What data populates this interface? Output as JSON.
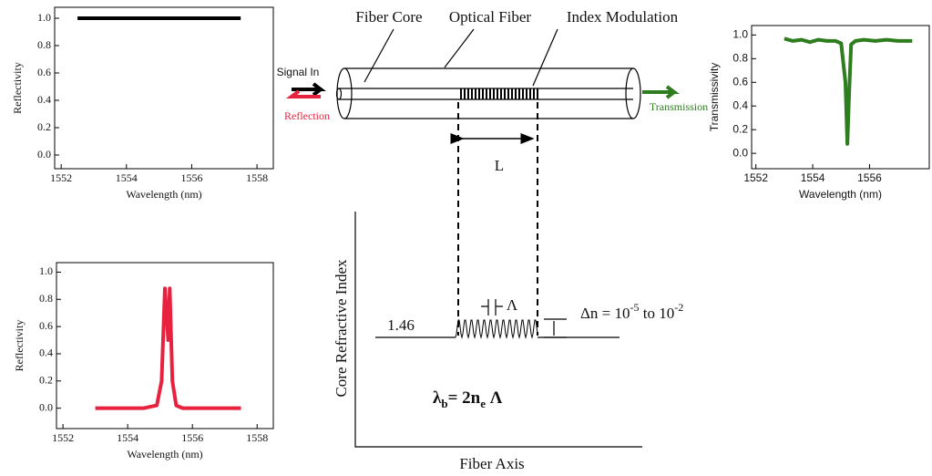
{
  "plots": [
    {
      "type": "line",
      "y_label": "Reflectivity",
      "x_label": "Wavelength (nm)",
      "xlim": [
        1551.8,
        1558.5
      ],
      "xticks": [
        1552,
        1554,
        1556,
        1558
      ],
      "ylim": [
        -0.1,
        1.08
      ],
      "yticks": [
        {
          "value": 0,
          "label": "0.0"
        },
        0.2,
        0.4,
        0.6,
        0.8,
        {
          "value": 1,
          "label": "1.0"
        }
      ],
      "x": [
        1552.5,
        1557.5
      ],
      "values": [
        1,
        1
      ],
      "color": "#000000"
    },
    {
      "type": "line",
      "y_label": "Transmissivity",
      "x_label": "Wavelength (nm)",
      "xlim": [
        1551.85,
        1558.1
      ],
      "xticks": [
        1552,
        1554,
        1556
      ],
      "ylim": [
        -0.13,
        1.08
      ],
      "yticks": [
        {
          "value": 0,
          "label": "0.0"
        },
        0.2,
        0.4,
        0.6,
        0.8,
        {
          "value": 1,
          "label": "1.0"
        }
      ],
      "x": [
        1553,
        1553.3,
        1553.6,
        1553.9,
        1554.2,
        1554.5,
        1554.8,
        1555.0,
        1555.15,
        1555.22,
        1555.28,
        1555.35,
        1555.5,
        1555.8,
        1556.2,
        1556.6,
        1557,
        1557.5
      ],
      "values": [
        0.97,
        0.95,
        0.96,
        0.94,
        0.96,
        0.95,
        0.95,
        0.93,
        0.6,
        0.08,
        0.5,
        0.92,
        0.95,
        0.96,
        0.95,
        0.96,
        0.95,
        0.95
      ],
      "color": "#2e7d1e"
    },
    {
      "type": "line",
      "y_label": "Reflectivity",
      "x_label": "Wavelength (nm)",
      "xlim": [
        1551.8,
        1558.5
      ],
      "xticks": [
        1552,
        1554,
        1556,
        1558
      ],
      "ylim": [
        -0.15,
        1.07
      ],
      "yticks": [
        {
          "value": 0,
          "label": "0.0"
        },
        0.2,
        0.4,
        0.6,
        0.8,
        {
          "value": 1,
          "label": "1.0"
        }
      ],
      "x": [
        1553,
        1554.5,
        1554.9,
        1555.05,
        1555.15,
        1555.25,
        1555.3,
        1555.38,
        1555.5,
        1555.7,
        1557.5
      ],
      "values": [
        0,
        0,
        0.02,
        0.2,
        0.88,
        0.5,
        0.88,
        0.2,
        0.02,
        0,
        0
      ],
      "color": "#e8213f"
    }
  ],
  "fiber": {
    "core_label": "Fiber Core",
    "fiber_label": "Optical Fiber",
    "modulation_label": "Index Modulation",
    "signal_in": "Signal In",
    "reflection": "Reflection",
    "transmission": "Transmission",
    "length_label": "L"
  },
  "index_profile": {
    "y_label": "Core Refractive Index",
    "x_label": "Fiber Axis",
    "baseline_label": "1.46",
    "period_label": "Λ",
    "delta_n": [
      "Δn = 10",
      "-5",
      " to 10",
      "-2"
    ],
    "bragg": [
      "λ",
      "b",
      "= 2n",
      "e",
      " Λ"
    ]
  }
}
